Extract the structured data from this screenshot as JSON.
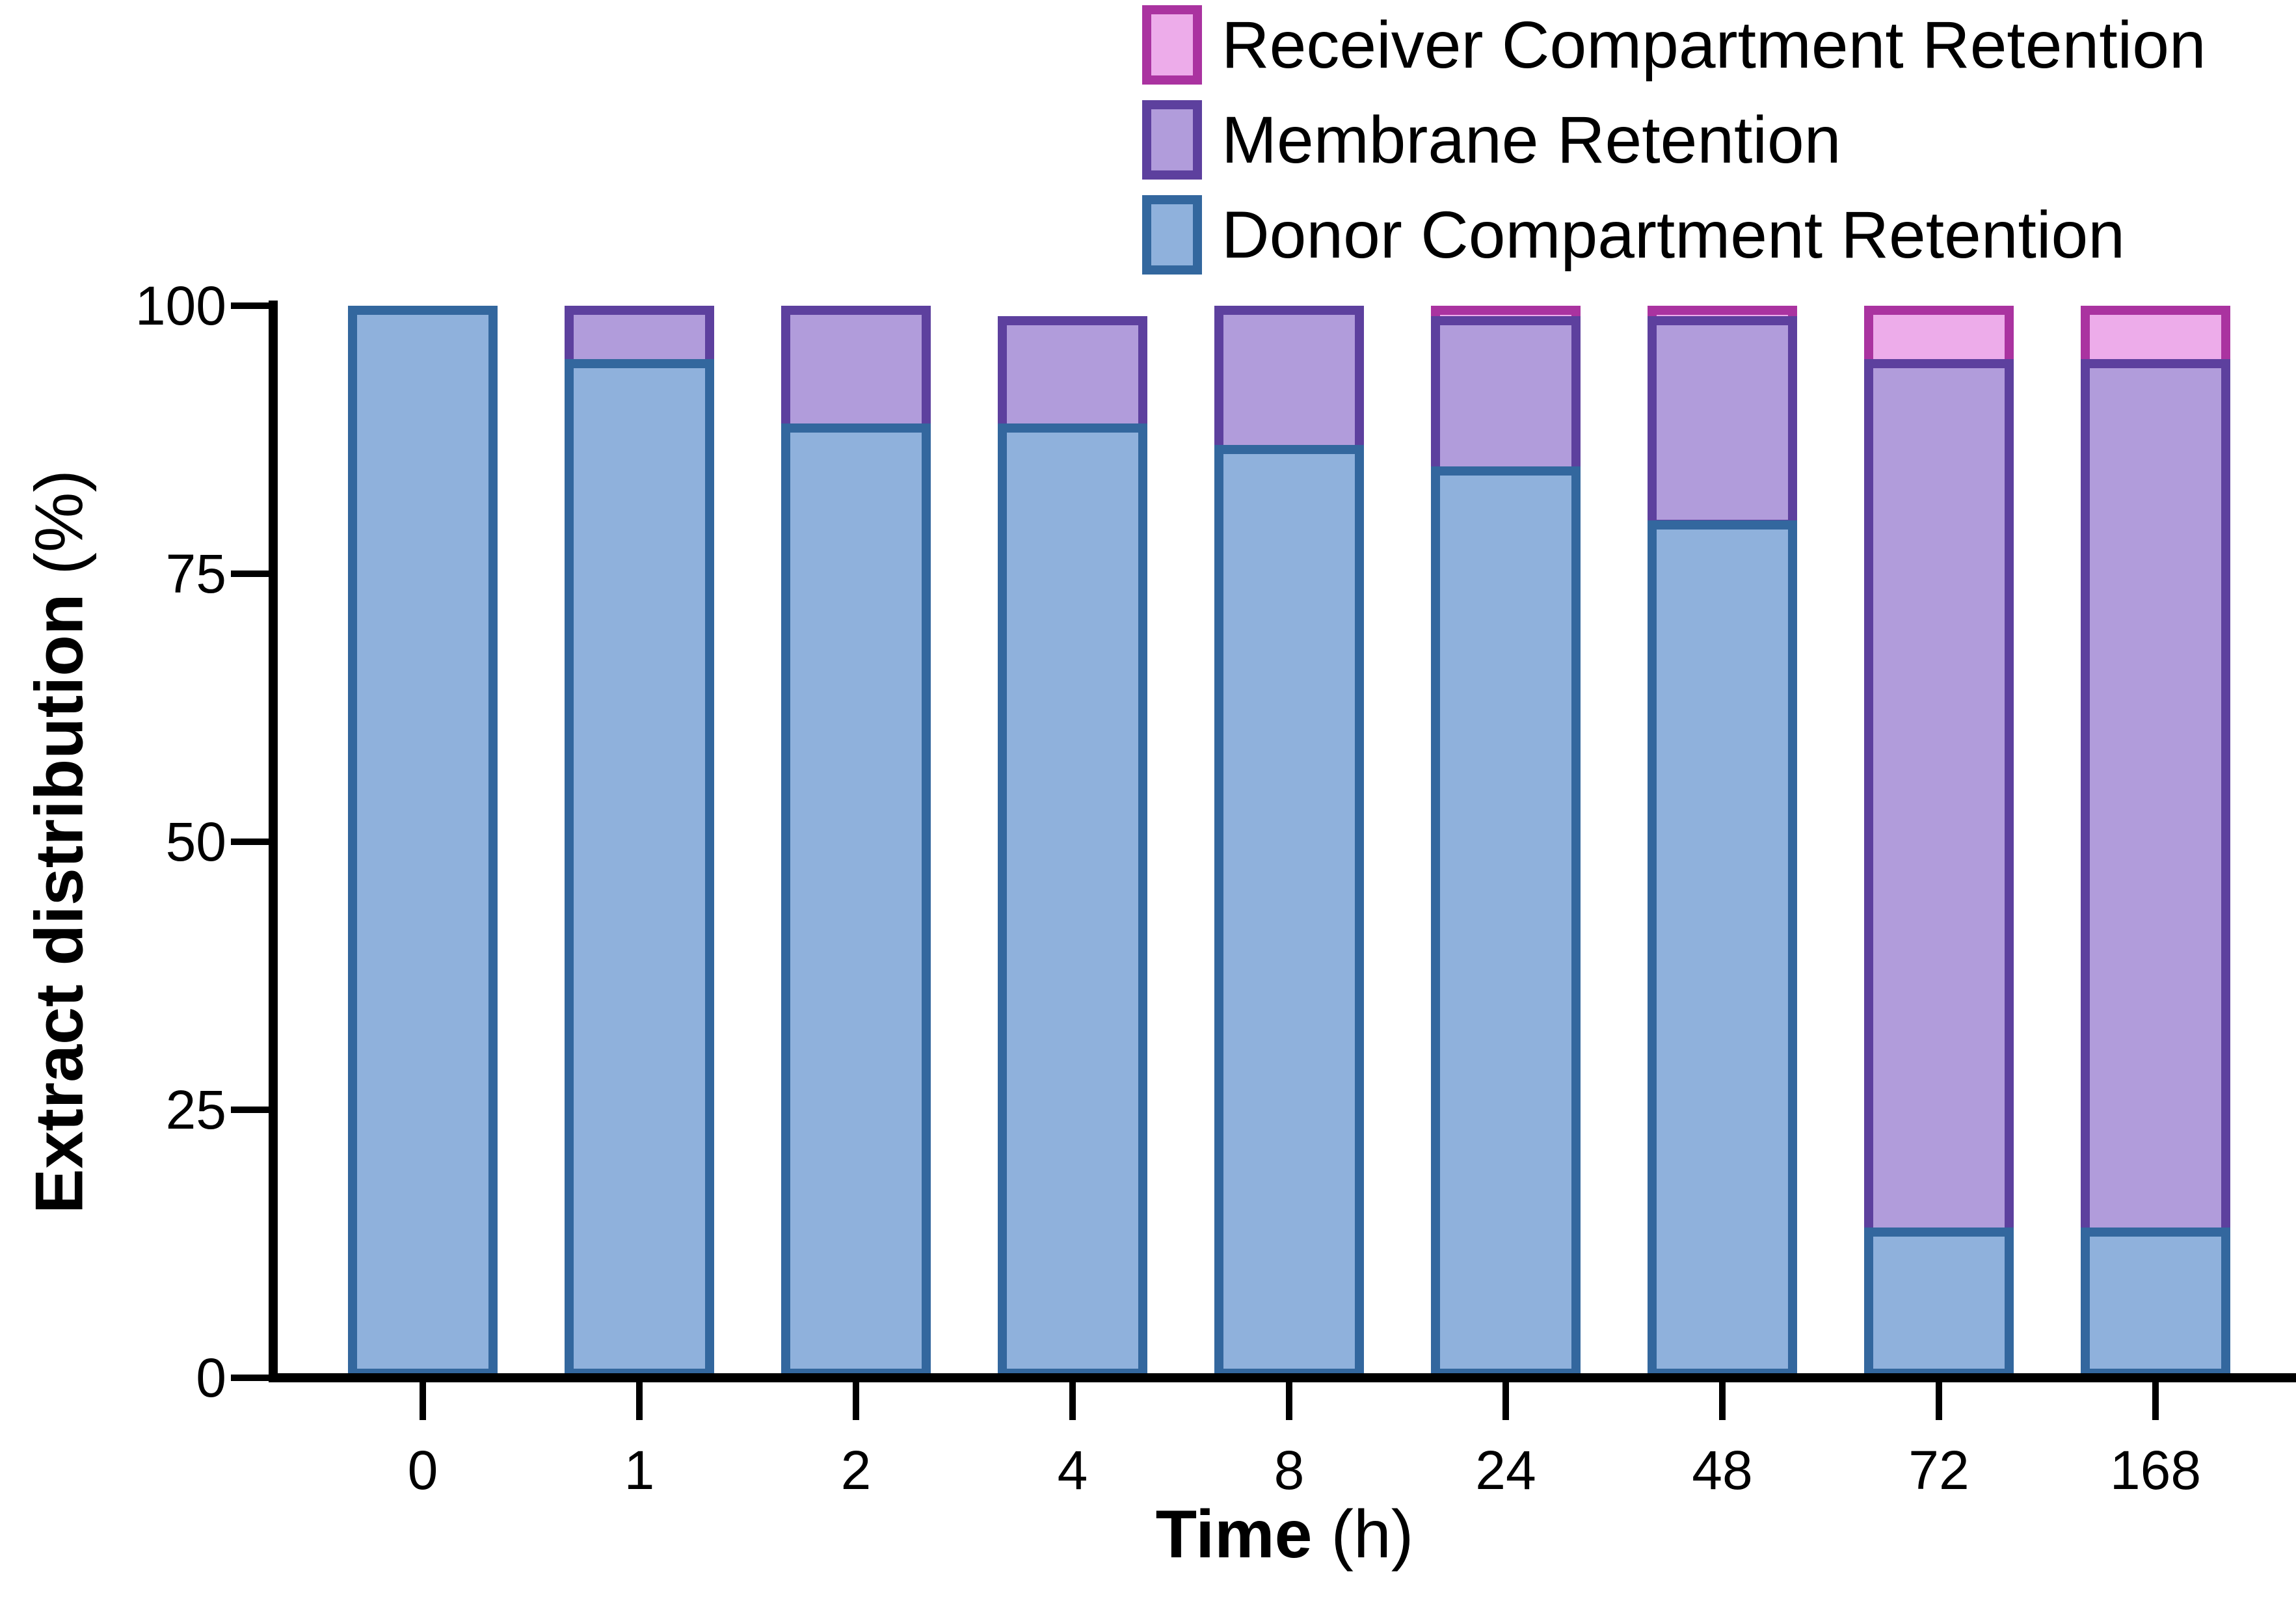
{
  "figure": {
    "background": "#ffffff"
  },
  "y_axis": {
    "title_main": "Extract distribution",
    "title_unit": " (%)"
  },
  "x_axis": {
    "title_main": "Time",
    "title_unit": " (h)"
  },
  "legend": {
    "items": [
      {
        "label": "Receiver Compartment Retention",
        "fill": "#EDACEA",
        "border": "#AA33A0"
      },
      {
        "label": "Membrane Retention",
        "fill": "#B19CDB",
        "border": "#5D409E"
      },
      {
        "label": "Donor Compartment Retention",
        "fill": "#8FB1DC",
        "border": "#33679E"
      }
    ]
  },
  "chart_data": {
    "type": "bar",
    "stacked": true,
    "title": "",
    "xlabel": "Time (h)",
    "ylabel": "Extract distribution (%)",
    "ylim": [
      0,
      100
    ],
    "yticks": [
      0,
      25,
      50,
      75,
      100
    ],
    "grid": false,
    "legend_position": "top-right",
    "legend_order_top_to_bottom": [
      "Receiver Compartment Retention",
      "Membrane Retention",
      "Donor Compartment Retention"
    ],
    "categories": [
      "0",
      "1",
      "2",
      "4",
      "8",
      "24",
      "48",
      "72",
      "168"
    ],
    "series": [
      {
        "name": "Donor Compartment Retention",
        "key": "donor",
        "fill": "#8FB1DC",
        "border": "#33679E",
        "values": [
          100,
          95,
          89,
          89,
          87,
          85,
          80,
          14,
          14
        ]
      },
      {
        "name": "Membrane Retention",
        "key": "membrane",
        "fill": "#B19CDB",
        "border": "#5D409E",
        "values": [
          0,
          5,
          11,
          10,
          13,
          14,
          19,
          81,
          81
        ]
      },
      {
        "name": "Receiver Compartment Retention",
        "key": "receiver",
        "fill": "#EDACEA",
        "border": "#AA33A0",
        "values": [
          0,
          0,
          0,
          0,
          0,
          1,
          1,
          5,
          5
        ]
      }
    ]
  }
}
